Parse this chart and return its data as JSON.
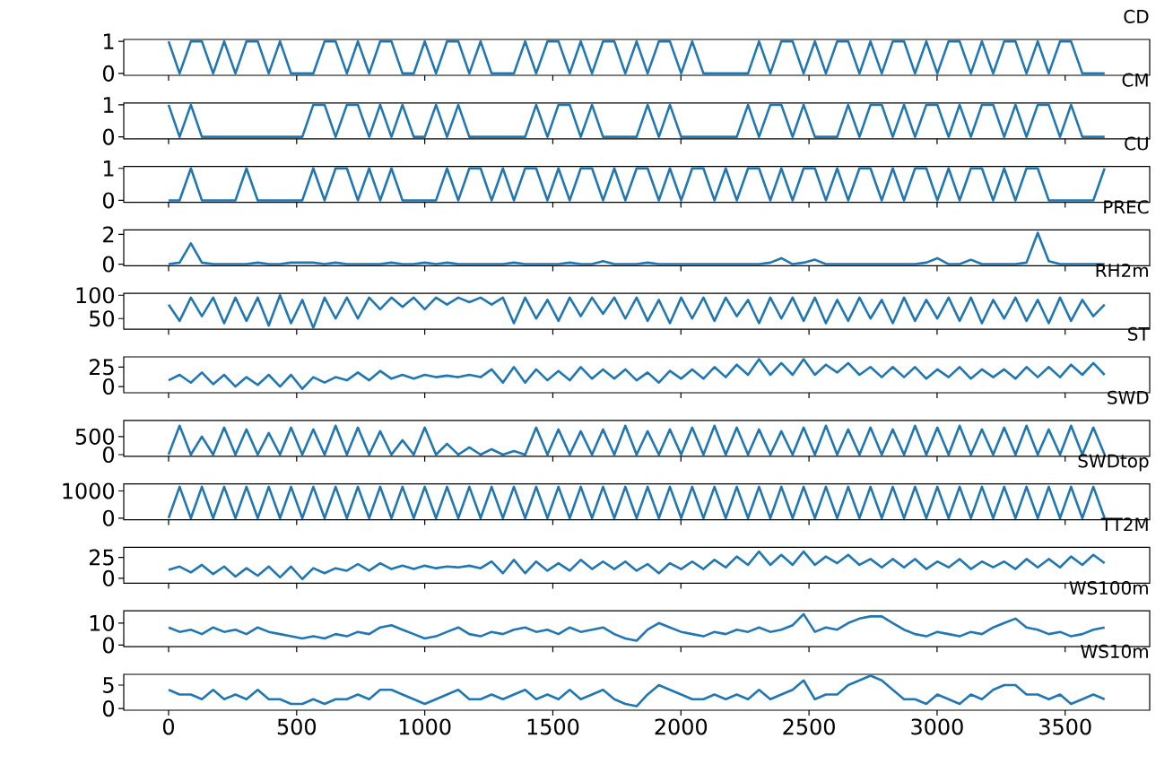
{
  "chart_data": [
    {
      "type": "line",
      "title": "CD",
      "color": "#1f77b4",
      "tick_labels": "y",
      "xlim": [
        -175,
        3830
      ],
      "ylim": [
        -0.06,
        1.06
      ],
      "yticks": [
        0,
        1
      ],
      "xticks": [
        0,
        500,
        1000,
        1500,
        2000,
        2500,
        3000,
        3500
      ],
      "x": [
        0,
        43,
        87,
        130,
        174,
        217,
        261,
        304,
        348,
        391,
        435,
        478,
        522,
        565,
        609,
        652,
        696,
        739,
        783,
        826,
        870,
        913,
        957,
        1000,
        1044,
        1087,
        1131,
        1174,
        1218,
        1261,
        1305,
        1348,
        1392,
        1435,
        1479,
        1522,
        1566,
        1609,
        1653,
        1696,
        1740,
        1783,
        1827,
        1870,
        1914,
        1957,
        2001,
        2044,
        2088,
        2131,
        2175,
        2218,
        2262,
        2305,
        2349,
        2392,
        2436,
        2479,
        2523,
        2566,
        2610,
        2653,
        2697,
        2740,
        2784,
        2827,
        2871,
        2914,
        2958,
        3001,
        3045,
        3088,
        3132,
        3175,
        3219,
        3262,
        3306,
        3349,
        3393,
        3436,
        3480,
        3523,
        3567,
        3610,
        3654
      ],
      "values": [
        1,
        0,
        1,
        1,
        0,
        1,
        0,
        1,
        1,
        0,
        1,
        0,
        0,
        0,
        1,
        1,
        0,
        1,
        0,
        1,
        1,
        0,
        0,
        1,
        0,
        1,
        1,
        0,
        1,
        0,
        0,
        0,
        1,
        0,
        1,
        1,
        0,
        1,
        0,
        1,
        1,
        0,
        1,
        0,
        1,
        1,
        0,
        1,
        0,
        0,
        0,
        0,
        0,
        1,
        0,
        1,
        1,
        0,
        1,
        0,
        1,
        1,
        0,
        1,
        0,
        1,
        1,
        0,
        1,
        0,
        1,
        1,
        0,
        1,
        0,
        1,
        1,
        0,
        1,
        0,
        1,
        1,
        0,
        0,
        0
      ]
    },
    {
      "type": "line",
      "title": "CM",
      "color": "#1f77b4",
      "tick_labels": "y",
      "xlim": [
        -175,
        3830
      ],
      "ylim": [
        -0.06,
        1.06
      ],
      "yticks": [
        0,
        1
      ],
      "xticks": [
        0,
        500,
        1000,
        1500,
        2000,
        2500,
        3000,
        3500
      ],
      "x": [
        0,
        43,
        87,
        130,
        174,
        217,
        261,
        304,
        348,
        391,
        435,
        478,
        522,
        565,
        609,
        652,
        696,
        739,
        783,
        826,
        870,
        913,
        957,
        1000,
        1044,
        1087,
        1131,
        1174,
        1218,
        1261,
        1305,
        1348,
        1392,
        1435,
        1479,
        1522,
        1566,
        1609,
        1653,
        1696,
        1740,
        1783,
        1827,
        1870,
        1914,
        1957,
        2001,
        2044,
        2088,
        2131,
        2175,
        2218,
        2262,
        2305,
        2349,
        2392,
        2436,
        2479,
        2523,
        2566,
        2610,
        2653,
        2697,
        2740,
        2784,
        2827,
        2871,
        2914,
        2958,
        3001,
        3045,
        3088,
        3132,
        3175,
        3219,
        3262,
        3306,
        3349,
        3393,
        3436,
        3480,
        3523,
        3567,
        3610,
        3654
      ],
      "values": [
        1,
        0,
        1,
        0,
        0,
        0,
        0,
        0,
        0,
        0,
        0,
        0,
        0,
        1,
        1,
        0,
        1,
        1,
        0,
        1,
        0,
        1,
        0,
        0,
        1,
        0,
        1,
        0,
        0,
        0,
        0,
        0,
        0,
        1,
        0,
        1,
        1,
        0,
        1,
        0,
        0,
        0,
        0,
        1,
        0,
        1,
        0,
        0,
        0,
        0,
        0,
        0,
        1,
        0,
        1,
        1,
        0,
        1,
        0,
        0,
        0,
        1,
        0,
        1,
        1,
        0,
        1,
        0,
        1,
        1,
        0,
        1,
        0,
        1,
        1,
        0,
        1,
        0,
        1,
        1,
        0,
        1,
        0,
        0,
        0
      ]
    },
    {
      "type": "line",
      "title": "CU",
      "color": "#1f77b4",
      "tick_labels": "y",
      "xlim": [
        -175,
        3830
      ],
      "ylim": [
        -0.06,
        1.06
      ],
      "yticks": [
        0,
        1
      ],
      "xticks": [
        0,
        500,
        1000,
        1500,
        2000,
        2500,
        3000,
        3500
      ],
      "x": [
        0,
        43,
        87,
        130,
        174,
        217,
        261,
        304,
        348,
        391,
        435,
        478,
        522,
        565,
        609,
        652,
        696,
        739,
        783,
        826,
        870,
        913,
        957,
        1000,
        1044,
        1087,
        1131,
        1174,
        1218,
        1261,
        1305,
        1348,
        1392,
        1435,
        1479,
        1522,
        1566,
        1609,
        1653,
        1696,
        1740,
        1783,
        1827,
        1870,
        1914,
        1957,
        2001,
        2044,
        2088,
        2131,
        2175,
        2218,
        2262,
        2305,
        2349,
        2392,
        2436,
        2479,
        2523,
        2566,
        2610,
        2653,
        2697,
        2740,
        2784,
        2827,
        2871,
        2914,
        2958,
        3001,
        3045,
        3088,
        3132,
        3175,
        3219,
        3262,
        3306,
        3349,
        3393,
        3436,
        3480,
        3523,
        3567,
        3610,
        3654
      ],
      "values": [
        0,
        0,
        1,
        0,
        0,
        0,
        0,
        1,
        0,
        0,
        0,
        0,
        0,
        1,
        0,
        1,
        1,
        0,
        1,
        0,
        1,
        0,
        0,
        0,
        0,
        1,
        0,
        1,
        1,
        0,
        1,
        0,
        1,
        1,
        0,
        1,
        0,
        1,
        1,
        0,
        1,
        0,
        1,
        1,
        0,
        1,
        0,
        1,
        1,
        0,
        1,
        0,
        1,
        1,
        0,
        1,
        0,
        1,
        1,
        0,
        1,
        0,
        1,
        1,
        0,
        1,
        0,
        1,
        1,
        0,
        1,
        0,
        1,
        1,
        0,
        1,
        0,
        1,
        1,
        0,
        0,
        0,
        0,
        0,
        1
      ]
    },
    {
      "type": "line",
      "title": "PREC",
      "color": "#1f77b4",
      "tick_labels": "y",
      "xlim": [
        -175,
        3830
      ],
      "ylim": [
        -0.11,
        2.3
      ],
      "yticks": [
        0,
        2
      ],
      "xticks": [
        0,
        500,
        1000,
        1500,
        2000,
        2500,
        3000,
        3500
      ],
      "x": [
        0,
        43,
        87,
        130,
        174,
        217,
        261,
        304,
        348,
        391,
        435,
        478,
        522,
        565,
        609,
        652,
        696,
        739,
        783,
        826,
        870,
        913,
        957,
        1000,
        1044,
        1087,
        1131,
        1174,
        1218,
        1261,
        1305,
        1348,
        1392,
        1435,
        1479,
        1522,
        1566,
        1609,
        1653,
        1696,
        1740,
        1783,
        1827,
        1870,
        1914,
        1957,
        2001,
        2044,
        2088,
        2131,
        2175,
        2218,
        2262,
        2305,
        2349,
        2392,
        2436,
        2479,
        2523,
        2566,
        2610,
        2653,
        2697,
        2740,
        2784,
        2827,
        2871,
        2914,
        2958,
        3001,
        3045,
        3088,
        3132,
        3175,
        3219,
        3262,
        3306,
        3349,
        3393,
        3436,
        3480,
        3523,
        3567,
        3610,
        3654
      ],
      "values": [
        0,
        0.1,
        1.4,
        0.1,
        0,
        0,
        0,
        0,
        0.1,
        0,
        0,
        0.1,
        0.1,
        0.1,
        0,
        0.1,
        0,
        0,
        0,
        0,
        0.1,
        0,
        0,
        0.1,
        0,
        0.1,
        0,
        0,
        0,
        0,
        0,
        0.1,
        0,
        0,
        0,
        0,
        0.1,
        0,
        0,
        0.2,
        0,
        0,
        0,
        0.1,
        0,
        0,
        0,
        0,
        0,
        0,
        0,
        0,
        0,
        0,
        0.1,
        0.4,
        0,
        0.1,
        0.3,
        0,
        0,
        0,
        0,
        0,
        0,
        0,
        0,
        0,
        0.1,
        0.4,
        0,
        0,
        0.3,
        0,
        0,
        0,
        0,
        0.1,
        2.1,
        0.2,
        0,
        0,
        0,
        0,
        0
      ]
    },
    {
      "type": "line",
      "title": "RH2m",
      "color": "#1f77b4",
      "tick_labels": "y",
      "xlim": [
        -175,
        3830
      ],
      "ylim": [
        27,
        104
      ],
      "yticks": [
        50,
        100
      ],
      "xticks": [
        0,
        500,
        1000,
        1500,
        2000,
        2500,
        3000,
        3500
      ],
      "x": [
        0,
        43,
        87,
        130,
        174,
        217,
        261,
        304,
        348,
        391,
        435,
        478,
        522,
        565,
        609,
        652,
        696,
        739,
        783,
        826,
        870,
        913,
        957,
        1000,
        1044,
        1087,
        1131,
        1174,
        1218,
        1261,
        1305,
        1348,
        1392,
        1435,
        1479,
        1522,
        1566,
        1609,
        1653,
        1696,
        1740,
        1783,
        1827,
        1870,
        1914,
        1957,
        2001,
        2044,
        2088,
        2131,
        2175,
        2218,
        2262,
        2305,
        2349,
        2392,
        2436,
        2479,
        2523,
        2566,
        2610,
        2653,
        2697,
        2740,
        2784,
        2827,
        2871,
        2914,
        2958,
        3001,
        3045,
        3088,
        3132,
        3175,
        3219,
        3262,
        3306,
        3349,
        3393,
        3436,
        3480,
        3523,
        3567,
        3610,
        3654
      ],
      "values": [
        80,
        45,
        95,
        55,
        95,
        40,
        95,
        45,
        95,
        35,
        100,
        40,
        90,
        30,
        95,
        50,
        95,
        50,
        95,
        70,
        95,
        75,
        95,
        70,
        95,
        80,
        95,
        85,
        95,
        80,
        95,
        40,
        95,
        50,
        90,
        45,
        95,
        55,
        95,
        60,
        95,
        50,
        95,
        45,
        90,
        40,
        95,
        50,
        95,
        45,
        95,
        55,
        90,
        40,
        95,
        50,
        95,
        45,
        95,
        40,
        90,
        45,
        95,
        50,
        90,
        40,
        95,
        45,
        90,
        50,
        95,
        45,
        95,
        40,
        90,
        50,
        95,
        45,
        90,
        40,
        95,
        45,
        90,
        55,
        80
      ]
    },
    {
      "type": "line",
      "title": "ST",
      "color": "#1f77b4",
      "tick_labels": "y",
      "xlim": [
        -175,
        3830
      ],
      "ylim": [
        -8,
        38
      ],
      "yticks": [
        0,
        25
      ],
      "xticks": [
        0,
        500,
        1000,
        1500,
        2000,
        2500,
        3000,
        3500
      ],
      "x": [
        0,
        43,
        87,
        130,
        174,
        217,
        261,
        304,
        348,
        391,
        435,
        478,
        522,
        565,
        609,
        652,
        696,
        739,
        783,
        826,
        870,
        913,
        957,
        1000,
        1044,
        1087,
        1131,
        1174,
        1218,
        1261,
        1305,
        1348,
        1392,
        1435,
        1479,
        1522,
        1566,
        1609,
        1653,
        1696,
        1740,
        1783,
        1827,
        1870,
        1914,
        1957,
        2001,
        2044,
        2088,
        2131,
        2175,
        2218,
        2262,
        2305,
        2349,
        2392,
        2436,
        2479,
        2523,
        2566,
        2610,
        2653,
        2697,
        2740,
        2784,
        2827,
        2871,
        2914,
        2958,
        3001,
        3045,
        3088,
        3132,
        3175,
        3219,
        3262,
        3306,
        3349,
        3393,
        3436,
        3480,
        3523,
        3567,
        3610,
        3654
      ],
      "values": [
        8,
        15,
        5,
        18,
        3,
        15,
        0,
        12,
        2,
        15,
        0,
        15,
        -3,
        12,
        5,
        12,
        8,
        18,
        8,
        20,
        10,
        15,
        10,
        15,
        12,
        14,
        12,
        15,
        12,
        22,
        5,
        25,
        5,
        22,
        8,
        20,
        8,
        25,
        10,
        22,
        10,
        22,
        8,
        18,
        5,
        20,
        10,
        22,
        10,
        25,
        12,
        28,
        15,
        35,
        15,
        30,
        15,
        35,
        15,
        28,
        18,
        30,
        15,
        25,
        12,
        25,
        12,
        25,
        10,
        22,
        12,
        25,
        10,
        22,
        12,
        22,
        10,
        25,
        12,
        25,
        12,
        28,
        15,
        30,
        15
      ]
    },
    {
      "type": "line",
      "title": "SWD",
      "color": "#1f77b4",
      "tick_labels": "y",
      "xlim": [
        -175,
        3830
      ],
      "ylim": [
        -45,
        950
      ],
      "yticks": [
        0,
        500
      ],
      "xticks": [
        0,
        500,
        1000,
        1500,
        2000,
        2500,
        3000,
        3500
      ],
      "x": [
        0,
        43,
        87,
        130,
        174,
        217,
        261,
        304,
        348,
        391,
        435,
        478,
        522,
        565,
        609,
        652,
        696,
        739,
        783,
        826,
        870,
        913,
        957,
        1000,
        1044,
        1087,
        1131,
        1174,
        1218,
        1261,
        1305,
        1348,
        1392,
        1435,
        1479,
        1522,
        1566,
        1609,
        1653,
        1696,
        1740,
        1783,
        1827,
        1870,
        1914,
        1957,
        2001,
        2044,
        2088,
        2131,
        2175,
        2218,
        2262,
        2305,
        2349,
        2392,
        2436,
        2479,
        2523,
        2566,
        2610,
        2653,
        2697,
        2740,
        2784,
        2827,
        2871,
        2914,
        2958,
        3001,
        3045,
        3088,
        3132,
        3175,
        3219,
        3262,
        3306,
        3349,
        3393,
        3436,
        3480,
        3523,
        3567,
        3610,
        3654
      ],
      "values": [
        0,
        800,
        0,
        500,
        0,
        750,
        0,
        700,
        0,
        600,
        0,
        750,
        0,
        700,
        0,
        800,
        0,
        750,
        0,
        650,
        0,
        400,
        0,
        750,
        0,
        300,
        0,
        200,
        0,
        150,
        0,
        100,
        0,
        750,
        0,
        700,
        0,
        650,
        0,
        700,
        0,
        800,
        0,
        650,
        0,
        700,
        0,
        750,
        0,
        800,
        0,
        750,
        0,
        700,
        0,
        650,
        0,
        750,
        0,
        800,
        0,
        700,
        0,
        750,
        0,
        700,
        0,
        800,
        0,
        750,
        0,
        800,
        0,
        700,
        0,
        750,
        0,
        800,
        0,
        700,
        0,
        800,
        0,
        750,
        0
      ]
    },
    {
      "type": "line",
      "title": "SWDtop",
      "color": "#1f77b4",
      "tick_labels": "y",
      "xlim": [
        -175,
        3830
      ],
      "ylim": [
        -60,
        1260
      ],
      "yticks": [
        0,
        1000
      ],
      "xticks": [
        0,
        500,
        1000,
        1500,
        2000,
        2500,
        3000,
        3500
      ],
      "x": [
        0,
        43,
        87,
        130,
        174,
        217,
        261,
        304,
        348,
        391,
        435,
        478,
        522,
        565,
        609,
        652,
        696,
        739,
        783,
        826,
        870,
        913,
        957,
        1000,
        1044,
        1087,
        1131,
        1174,
        1218,
        1261,
        1305,
        1348,
        1392,
        1435,
        1479,
        1522,
        1566,
        1609,
        1653,
        1696,
        1740,
        1783,
        1827,
        1870,
        1914,
        1957,
        2001,
        2044,
        2088,
        2131,
        2175,
        2218,
        2262,
        2305,
        2349,
        2392,
        2436,
        2479,
        2523,
        2566,
        2610,
        2653,
        2697,
        2740,
        2784,
        2827,
        2871,
        2914,
        2958,
        3001,
        3045,
        3088,
        3132,
        3175,
        3219,
        3262,
        3306,
        3349,
        3393,
        3436,
        3480,
        3523,
        3567,
        3610,
        3654
      ],
      "values": [
        0,
        1150,
        0,
        1150,
        0,
        1150,
        0,
        1150,
        0,
        1150,
        0,
        1150,
        0,
        1150,
        0,
        1150,
        0,
        1150,
        0,
        1150,
        0,
        1150,
        0,
        1150,
        0,
        1150,
        0,
        1150,
        0,
        1150,
        0,
        1150,
        0,
        1150,
        0,
        1150,
        0,
        1150,
        0,
        1150,
        0,
        1150,
        0,
        1150,
        0,
        1150,
        0,
        1150,
        0,
        1150,
        0,
        1150,
        0,
        1150,
        0,
        1150,
        0,
        1150,
        0,
        1150,
        0,
        1150,
        0,
        1150,
        0,
        1150,
        0,
        1150,
        0,
        1150,
        0,
        1150,
        0,
        1150,
        0,
        1150,
        0,
        1150,
        0,
        1150,
        0,
        1150,
        0,
        1150,
        0
      ]
    },
    {
      "type": "line",
      "title": "TT2M",
      "color": "#1f77b4",
      "tick_labels": "y",
      "xlim": [
        -175,
        3830
      ],
      "ylim": [
        -6,
        37
      ],
      "yticks": [
        0,
        25
      ],
      "xticks": [
        0,
        500,
        1000,
        1500,
        2000,
        2500,
        3000,
        3500
      ],
      "x": [
        0,
        43,
        87,
        130,
        174,
        217,
        261,
        304,
        348,
        391,
        435,
        478,
        522,
        565,
        609,
        652,
        696,
        739,
        783,
        826,
        870,
        913,
        957,
        1000,
        1044,
        1087,
        1131,
        1174,
        1218,
        1261,
        1305,
        1348,
        1392,
        1435,
        1479,
        1522,
        1566,
        1609,
        1653,
        1696,
        1740,
        1783,
        1827,
        1870,
        1914,
        1957,
        2001,
        2044,
        2088,
        2131,
        2175,
        2218,
        2262,
        2305,
        2349,
        2392,
        2436,
        2479,
        2523,
        2566,
        2610,
        2653,
        2697,
        2740,
        2784,
        2827,
        2871,
        2914,
        2958,
        3001,
        3045,
        3088,
        3132,
        3175,
        3219,
        3262,
        3306,
        3349,
        3393,
        3436,
        3480,
        3523,
        3567,
        3610,
        3654
      ],
      "values": [
        10,
        14,
        7,
        16,
        5,
        14,
        2,
        12,
        3,
        14,
        1,
        14,
        -1,
        12,
        6,
        12,
        9,
        17,
        9,
        18,
        11,
        15,
        11,
        15,
        12,
        14,
        13,
        15,
        12,
        20,
        6,
        22,
        6,
        20,
        9,
        18,
        9,
        22,
        11,
        20,
        11,
        20,
        9,
        17,
        6,
        18,
        11,
        20,
        11,
        22,
        13,
        26,
        16,
        32,
        16,
        28,
        16,
        32,
        16,
        26,
        18,
        28,
        16,
        23,
        13,
        23,
        13,
        23,
        11,
        20,
        13,
        23,
        11,
        20,
        13,
        20,
        11,
        23,
        13,
        23,
        13,
        26,
        16,
        28,
        18
      ]
    },
    {
      "type": "line",
      "title": "WS100m",
      "color": "#1f77b4",
      "tick_labels": "y",
      "xlim": [
        -175,
        3830
      ],
      "ylim": [
        -0.7,
        15.5
      ],
      "yticks": [
        0,
        10
      ],
      "xticks": [
        0,
        500,
        1000,
        1500,
        2000,
        2500,
        3000,
        3500
      ],
      "x": [
        0,
        43,
        87,
        130,
        174,
        217,
        261,
        304,
        348,
        391,
        435,
        478,
        522,
        565,
        609,
        652,
        696,
        739,
        783,
        826,
        870,
        913,
        957,
        1000,
        1044,
        1087,
        1131,
        1174,
        1218,
        1261,
        1305,
        1348,
        1392,
        1435,
        1479,
        1522,
        1566,
        1609,
        1653,
        1696,
        1740,
        1783,
        1827,
        1870,
        1914,
        1957,
        2001,
        2044,
        2088,
        2131,
        2175,
        2218,
        2262,
        2305,
        2349,
        2392,
        2436,
        2479,
        2523,
        2566,
        2610,
        2653,
        2697,
        2740,
        2784,
        2827,
        2871,
        2914,
        2958,
        3001,
        3045,
        3088,
        3132,
        3175,
        3219,
        3262,
        3306,
        3349,
        3393,
        3436,
        3480,
        3523,
        3567,
        3610,
        3654
      ],
      "values": [
        8,
        6,
        7,
        5,
        8,
        6,
        7,
        5,
        8,
        6,
        5,
        4,
        3,
        4,
        3,
        5,
        4,
        6,
        5,
        8,
        9,
        7,
        5,
        3,
        4,
        6,
        8,
        5,
        4,
        6,
        5,
        7,
        8,
        6,
        7,
        5,
        8,
        6,
        7,
        8,
        5,
        3,
        2,
        7,
        10,
        8,
        6,
        5,
        4,
        6,
        5,
        7,
        6,
        8,
        6,
        7,
        9,
        14,
        6,
        8,
        7,
        10,
        12,
        13,
        13,
        10,
        7,
        5,
        4,
        6,
        5,
        4,
        6,
        5,
        8,
        10,
        12,
        8,
        7,
        5,
        6,
        4,
        5,
        7,
        8
      ]
    },
    {
      "type": "line",
      "title": "WS10m",
      "color": "#1f77b4",
      "xlim": [
        -175,
        3830
      ],
      "ylim": [
        -0.35,
        7.3
      ],
      "yticks": [
        0,
        5
      ],
      "xticks": [
        0,
        500,
        1000,
        1500,
        2000,
        2500,
        3000,
        3500
      ],
      "x": [
        0,
        43,
        87,
        130,
        174,
        217,
        261,
        304,
        348,
        391,
        435,
        478,
        522,
        565,
        609,
        652,
        696,
        739,
        783,
        826,
        870,
        913,
        957,
        1000,
        1044,
        1087,
        1131,
        1174,
        1218,
        1261,
        1305,
        1348,
        1392,
        1435,
        1479,
        1522,
        1566,
        1609,
        1653,
        1696,
        1740,
        1783,
        1827,
        1870,
        1914,
        1957,
        2001,
        2044,
        2088,
        2131,
        2175,
        2218,
        2262,
        2305,
        2349,
        2392,
        2436,
        2479,
        2523,
        2566,
        2610,
        2653,
        2697,
        2740,
        2784,
        2827,
        2871,
        2914,
        2958,
        3001,
        3045,
        3088,
        3132,
        3175,
        3219,
        3262,
        3306,
        3349,
        3393,
        3436,
        3480,
        3523,
        3567,
        3610,
        3654
      ],
      "values": [
        4,
        3,
        3,
        2,
        4,
        2,
        3,
        2,
        4,
        2,
        2,
        1,
        1,
        2,
        1,
        2,
        2,
        3,
        2,
        4,
        4,
        3,
        2,
        1,
        2,
        3,
        4,
        2,
        2,
        3,
        2,
        3,
        4,
        2,
        3,
        2,
        4,
        2,
        3,
        4,
        2,
        1,
        0.5,
        3,
        5,
        4,
        3,
        2,
        2,
        3,
        2,
        3,
        2,
        4,
        2,
        3,
        4,
        6,
        2,
        3,
        3,
        5,
        6,
        7,
        6,
        4,
        2,
        2,
        1,
        3,
        2,
        1,
        3,
        2,
        4,
        5,
        5,
        3,
        3,
        2,
        3,
        1,
        2,
        3,
        2
      ]
    }
  ]
}
